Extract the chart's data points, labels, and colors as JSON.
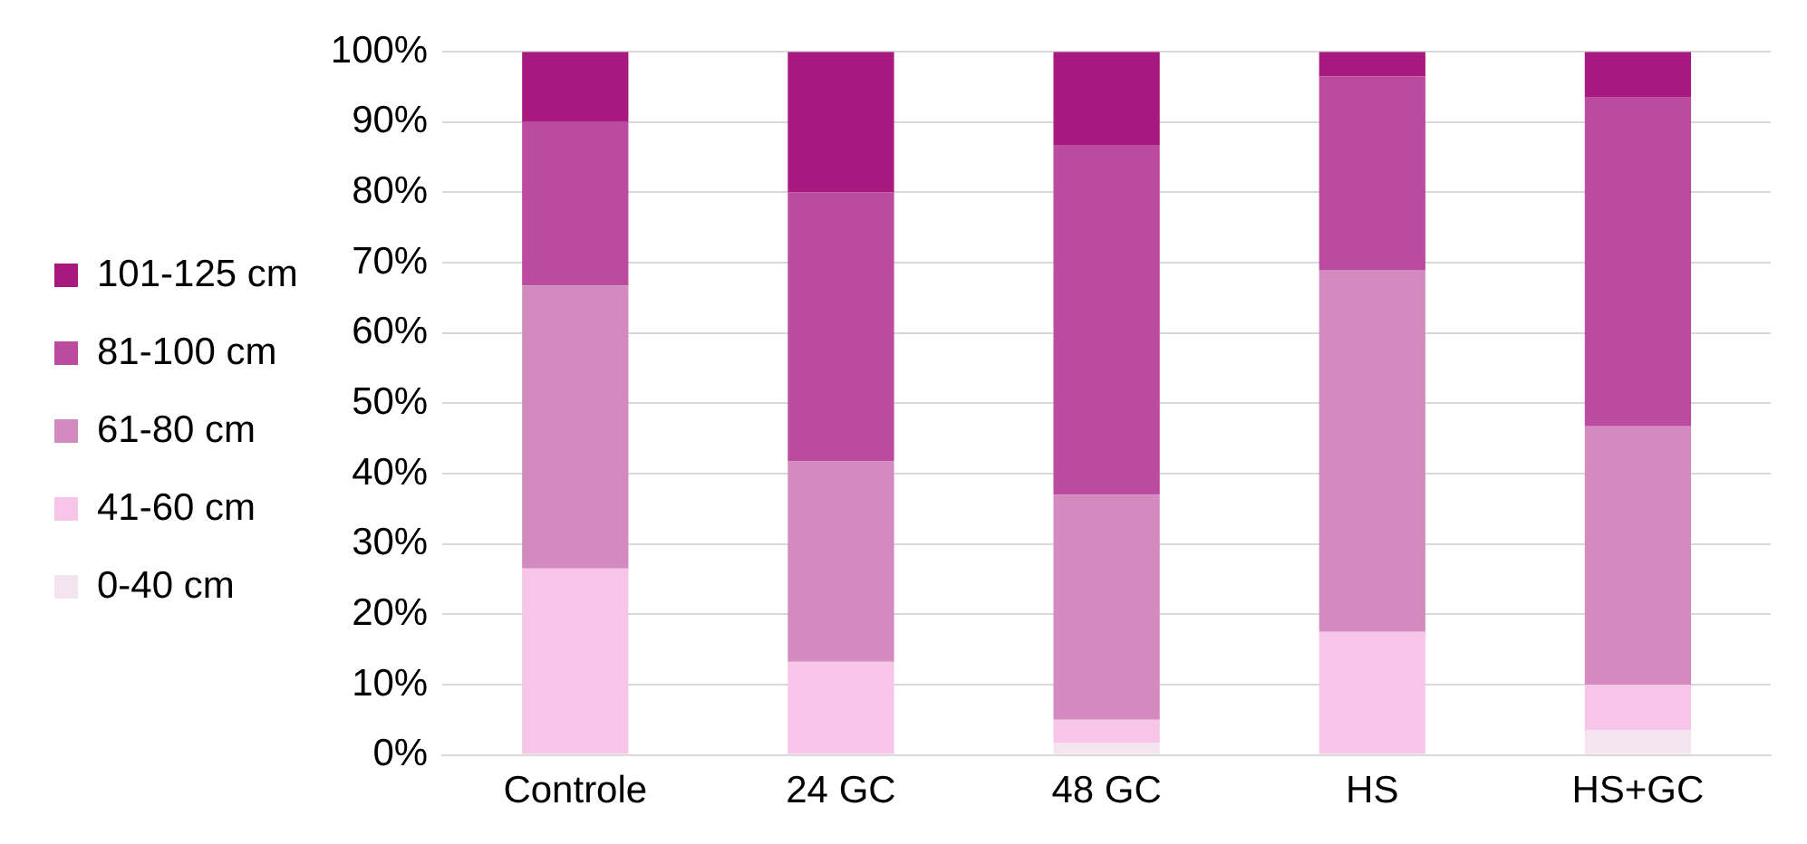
{
  "chart_data": {
    "type": "bar",
    "stacked": true,
    "categories": [
      "Controle",
      "24 GC",
      "48 GC",
      "HS",
      "HS+GC"
    ],
    "series": [
      {
        "name": "0-40 cm",
        "color": "#f4e4ef",
        "values": [
          0,
          0,
          1.75,
          0,
          3.5
        ]
      },
      {
        "name": "41-60 cm",
        "color": "#f7c5e8",
        "values": [
          26.5,
          13.25,
          3.25,
          17.5,
          6.5
        ]
      },
      {
        "name": "61-80 cm",
        "color": "#d38abf",
        "values": [
          40.25,
          28.5,
          32,
          51.5,
          36.75
        ]
      },
      {
        "name": "81-100 cm",
        "color": "#bb4b9f",
        "values": [
          23.25,
          38.25,
          49.75,
          27.5,
          46.75
        ]
      },
      {
        "name": "101-125 cm",
        "color": "#a8197f",
        "values": [
          10,
          20,
          13.25,
          3.5,
          6.5
        ]
      }
    ],
    "ylim": [
      0,
      100
    ],
    "yticks": [
      {
        "value": 0,
        "label": "0%"
      },
      {
        "value": 10,
        "label": "10%"
      },
      {
        "value": 20,
        "label": "20%"
      },
      {
        "value": 30,
        "label": "30%"
      },
      {
        "value": 40,
        "label": "40%"
      },
      {
        "value": 50,
        "label": "50%"
      },
      {
        "value": 60,
        "label": "60%"
      },
      {
        "value": 70,
        "label": "70%"
      },
      {
        "value": 80,
        "label": "80%"
      },
      {
        "value": 90,
        "label": "90%"
      },
      {
        "value": 100,
        "label": "100%"
      }
    ],
    "grid": "y",
    "legend": "left"
  }
}
